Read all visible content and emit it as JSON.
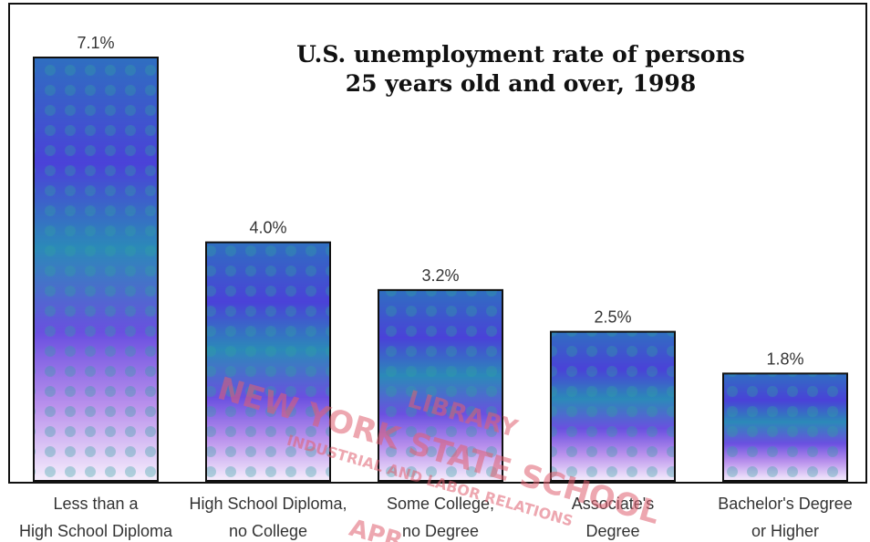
{
  "chart_data": {
    "type": "bar",
    "title_lines": [
      "U.S. unemployment rate of persons",
      "25 years old and over, 1998"
    ],
    "categories": [
      [
        "Less than a",
        "High School Diploma"
      ],
      [
        "High School Diploma,",
        "no College"
      ],
      [
        "Some College,",
        "no Degree"
      ],
      [
        "Associate's",
        "Degree"
      ],
      [
        "Bachelor's Degree",
        "or Higher"
      ]
    ],
    "values": [
      7.1,
      4.0,
      3.2,
      2.5,
      1.8
    ],
    "value_labels": [
      "7.1%",
      "4.0%",
      "3.2%",
      "2.5%",
      "1.8%"
    ],
    "ylim": [
      0,
      7.1
    ],
    "xlabel": "",
    "ylabel": "",
    "grid": false,
    "legend": "none",
    "colors": {
      "bar_top": "#3a3acc",
      "bar_mid1": "#2e7fd0",
      "bar_mid2": "#5a4ee8",
      "bar_bottom": "#f4e8ff",
      "frame": "#111111",
      "title": "#111111",
      "labels": "#333333"
    }
  },
  "stamp": {
    "lines": [
      "LIBRARY",
      "NEW YORK STATE SCHOOL",
      "INDUSTRIAL AND LABOR RELATIONS",
      "APR"
    ],
    "color": "#e06070"
  }
}
